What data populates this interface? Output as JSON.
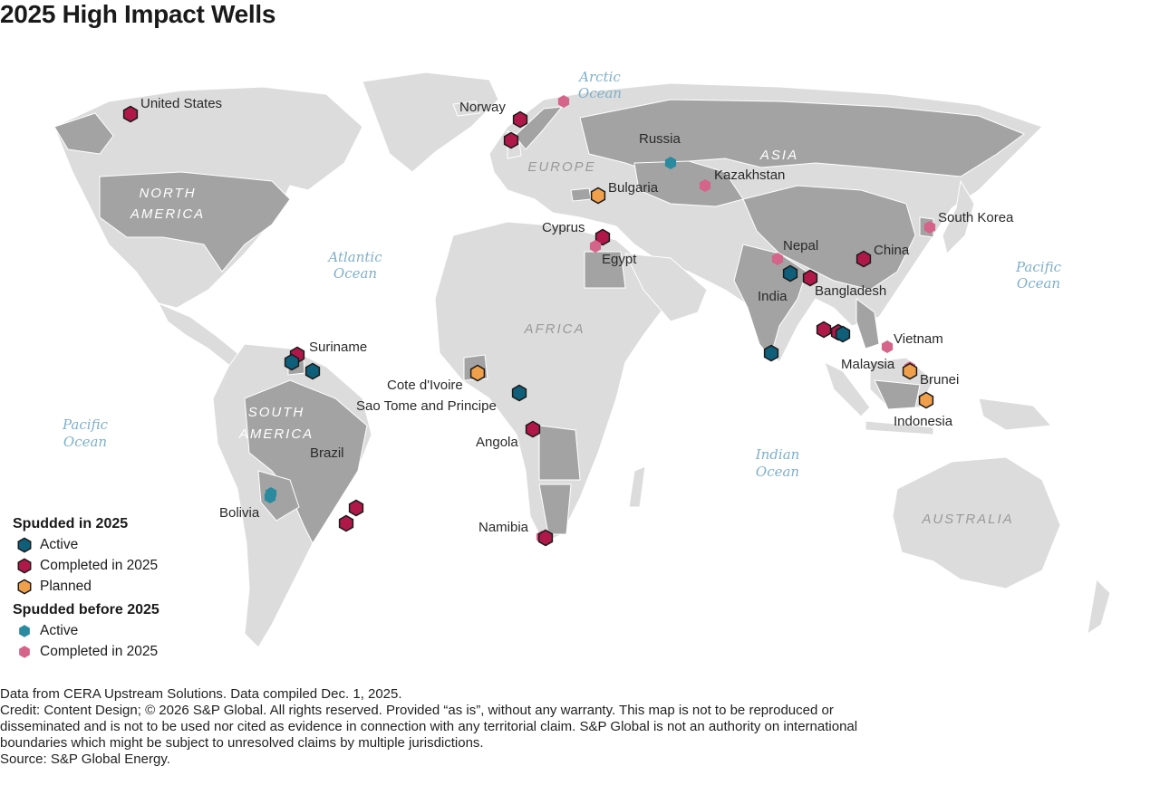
{
  "title": "2025 High Impact Wells",
  "colors": {
    "land": "#dcdcdc",
    "highlight": "#a3a3a3",
    "border": "#ffffff",
    "ocean_text": "#7fb0c9",
    "spudded_2025_active": "#0f5f7a",
    "spudded_2025_completed": "#b0184a",
    "spudded_2025_planned": "#f0a04a",
    "before_2025_active": "#2a8aa0",
    "before_2025_completed": "#d4648a"
  },
  "oceans": [
    {
      "id": "arctic",
      "line1": "Arctic",
      "line2": "Ocean"
    },
    {
      "id": "atlantic",
      "line1": "Atlantic",
      "line2": "Ocean"
    },
    {
      "id": "pacific-east",
      "line1": "Pacific",
      "line2": "Ocean"
    },
    {
      "id": "pacific-west",
      "line1": "Pacific",
      "line2": "Ocean"
    },
    {
      "id": "indian",
      "line1": "Indian",
      "line2": "Ocean"
    }
  ],
  "regions": [
    {
      "id": "north-america",
      "line1": "NORTH",
      "line2": "AMERICA"
    },
    {
      "id": "south-america",
      "line1": "SOUTH",
      "line2": "AMERICA"
    },
    {
      "id": "europe",
      "line1": "EUROPE",
      "line2": ""
    },
    {
      "id": "asia",
      "line1": "ASIA",
      "line2": ""
    },
    {
      "id": "africa",
      "line1": "AFRICA",
      "line2": ""
    },
    {
      "id": "australia",
      "line1": "AUSTRALIA",
      "line2": ""
    }
  ],
  "countries": [
    "United States",
    "Norway",
    "Russia",
    "Kazakhstan",
    "Bulgaria",
    "South Korea",
    "Cyprus",
    "Egypt",
    "Nepal",
    "China",
    "India",
    "Bangladesh",
    "Suriname",
    "Cote d'Ivoire",
    "Sao Tome and Principe",
    "Vietnam",
    "Malaysia",
    "Brunei",
    "Indonesia",
    "Angola",
    "Brazil",
    "Bolivia",
    "Namibia"
  ],
  "legend": {
    "group1_title": "Spudded in 2025",
    "group1_items": [
      {
        "label": "Active",
        "key": "spudded_2025_active"
      },
      {
        "label": "Completed in 2025",
        "key": "spudded_2025_completed"
      },
      {
        "label": "Planned",
        "key": "spudded_2025_planned"
      }
    ],
    "group2_title": "Spudded before 2025",
    "group2_items": [
      {
        "label": "Active",
        "key": "before_2025_active"
      },
      {
        "label": "Completed in 2025",
        "key": "before_2025_completed"
      }
    ]
  },
  "footer": {
    "line1": "Data from CERA Upstream Solutions. Data compiled Dec. 1, 2025.",
    "credit": "Credit: Content Design; © 2026 S&P Global. All rights reserved. Provided “as is”, without any warranty. This map is not to be reproduced or disseminated and is not to be used nor cited as evidence in connection with any territorial claim. S&P Global is not an authority on international boundaries which might be subject to unresolved claims by multiple jurisdictions.",
    "source": "Source: S&P Global Energy."
  }
}
